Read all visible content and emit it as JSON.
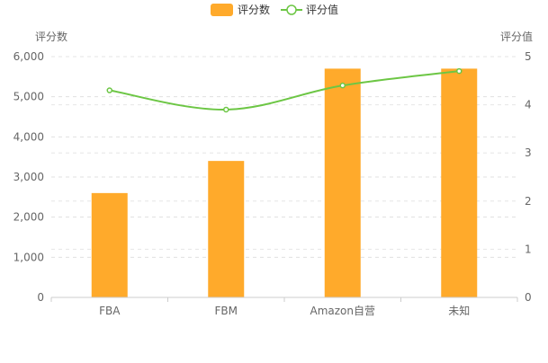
{
  "chart_data": {
    "type": "bar",
    "categories": [
      "FBA",
      "FBM",
      "Amazon自营",
      "未知"
    ],
    "series": [
      {
        "name": "评分数",
        "type": "bar",
        "axis": "left",
        "values": [
          2600,
          3400,
          5700,
          5700
        ]
      },
      {
        "name": "评分值",
        "type": "line",
        "axis": "right",
        "values": [
          4.3,
          3.9,
          4.4,
          4.7
        ]
      }
    ],
    "y_left": {
      "label": "评分数",
      "lim": [
        0,
        6000
      ],
      "ticks": [
        "0",
        "1,000",
        "2,000",
        "3,000",
        "4,000",
        "5,000",
        "6,000"
      ]
    },
    "y_right": {
      "label": "评分值",
      "lim": [
        0,
        5
      ],
      "ticks": [
        "0",
        "1",
        "2",
        "3",
        "4",
        "5"
      ]
    },
    "grid": true,
    "legend_position": "top-center",
    "colors": {
      "bar": "#ffaa2b",
      "line": "#6cc644",
      "axis": "#cccccc",
      "text": "#666666"
    }
  }
}
